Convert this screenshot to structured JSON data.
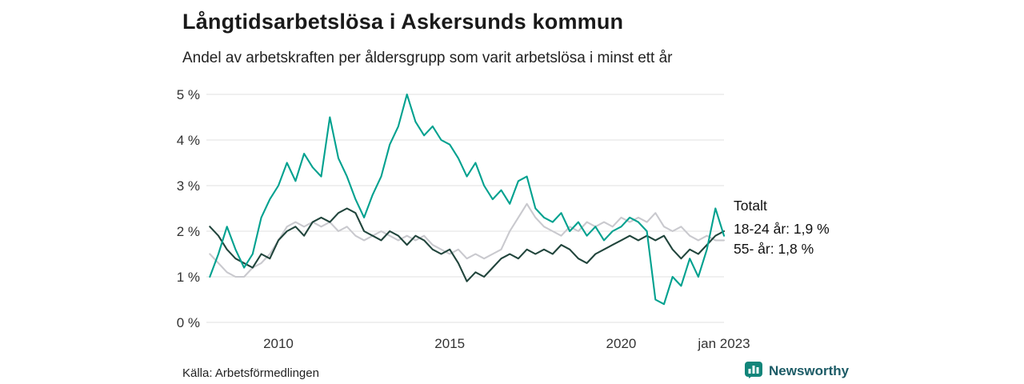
{
  "title": "Långtidsarbetslösa i Askersunds kommun",
  "subtitle": "Andel av arbetskraften per åldersgrupp som varit arbetslösa i minst ett år",
  "source": "Källa: Arbetsförmedlingen",
  "logo": {
    "text": "Newsworthy",
    "icon": "bar-chart-icon",
    "icon_color": "#12857a",
    "text_color": "#1c5b66"
  },
  "annotations": [
    {
      "label": "Totalt"
    },
    {
      "label": "18-24 år: 1,9 %"
    },
    {
      "label": "55- år: 1,8 %"
    }
  ],
  "chart_data": {
    "type": "line",
    "title": "Långtidsarbetslösa i Askersunds kommun",
    "subtitle": "Andel av arbetskraften per åldersgrupp som varit arbetslösa i minst ett år",
    "xlabel": "",
    "ylabel": "",
    "grid": "horizontal",
    "gridline_color": "#e2e2e2",
    "xlim": [
      2007.9,
      2023
    ],
    "ylim": [
      0,
      5
    ],
    "x_start": 2008,
    "x_step_years": 0.25,
    "yticks": [
      {
        "value": 0,
        "label": "0 %"
      },
      {
        "value": 1,
        "label": "1 %"
      },
      {
        "value": 2,
        "label": "2 %"
      },
      {
        "value": 3,
        "label": "3 %"
      },
      {
        "value": 4,
        "label": "4 %"
      },
      {
        "value": 5,
        "label": "5 %"
      }
    ],
    "xticks": [
      {
        "value": 2010,
        "label": "2010"
      },
      {
        "value": 2015,
        "label": "2015"
      },
      {
        "value": 2020,
        "label": "2020"
      },
      {
        "value": 2023,
        "label": "jan 2023"
      }
    ],
    "series": [
      {
        "name": "55- år",
        "color": "#c9c9ce",
        "end_value_label": "55- år: 1,8 %",
        "values": [
          1.5,
          1.3,
          1.1,
          1.0,
          1.0,
          1.2,
          1.3,
          1.5,
          1.8,
          2.1,
          2.2,
          2.1,
          2.2,
          2.1,
          2.2,
          2.0,
          2.1,
          1.9,
          1.8,
          1.9,
          2.0,
          1.9,
          1.8,
          1.9,
          1.8,
          1.9,
          1.7,
          1.6,
          1.5,
          1.6,
          1.4,
          1.5,
          1.4,
          1.5,
          1.6,
          2.0,
          2.3,
          2.6,
          2.3,
          2.1,
          2.0,
          1.9,
          2.1,
          2.0,
          2.2,
          2.1,
          2.2,
          2.1,
          2.3,
          2.2,
          2.3,
          2.2,
          2.4,
          2.1,
          2.0,
          2.1,
          1.9,
          1.8,
          1.9,
          1.8,
          1.8
        ]
      },
      {
        "name": "Totalt",
        "color": "#21453c",
        "end_value_label": "Totalt",
        "values": [
          2.1,
          1.9,
          1.6,
          1.4,
          1.3,
          1.2,
          1.5,
          1.4,
          1.8,
          2.0,
          2.1,
          1.9,
          2.2,
          2.3,
          2.2,
          2.4,
          2.5,
          2.4,
          2.0,
          1.9,
          1.8,
          2.0,
          1.9,
          1.7,
          1.9,
          1.8,
          1.6,
          1.5,
          1.6,
          1.3,
          0.9,
          1.1,
          1.0,
          1.2,
          1.4,
          1.5,
          1.4,
          1.6,
          1.5,
          1.6,
          1.5,
          1.7,
          1.6,
          1.4,
          1.3,
          1.5,
          1.6,
          1.7,
          1.8,
          1.9,
          1.8,
          1.9,
          1.8,
          1.9,
          1.6,
          1.4,
          1.6,
          1.5,
          1.7,
          1.9,
          2.0
        ]
      },
      {
        "name": "18-24 år",
        "color": "#00a18f",
        "end_value_label": "18-24 år: 1,9 %",
        "values": [
          1.0,
          1.5,
          2.1,
          1.6,
          1.2,
          1.5,
          2.3,
          2.7,
          3.0,
          3.5,
          3.1,
          3.7,
          3.4,
          3.2,
          4.5,
          3.6,
          3.2,
          2.7,
          2.3,
          2.8,
          3.2,
          3.9,
          4.3,
          5.0,
          4.4,
          4.1,
          4.3,
          4.0,
          3.9,
          3.6,
          3.2,
          3.5,
          3.0,
          2.7,
          2.9,
          2.6,
          3.1,
          3.2,
          2.5,
          2.3,
          2.2,
          2.4,
          2.0,
          2.2,
          1.9,
          2.1,
          1.8,
          2.0,
          2.1,
          2.3,
          2.2,
          2.0,
          0.5,
          0.4,
          1.0,
          0.8,
          1.4,
          1.0,
          1.6,
          2.5,
          1.9
        ]
      }
    ]
  }
}
